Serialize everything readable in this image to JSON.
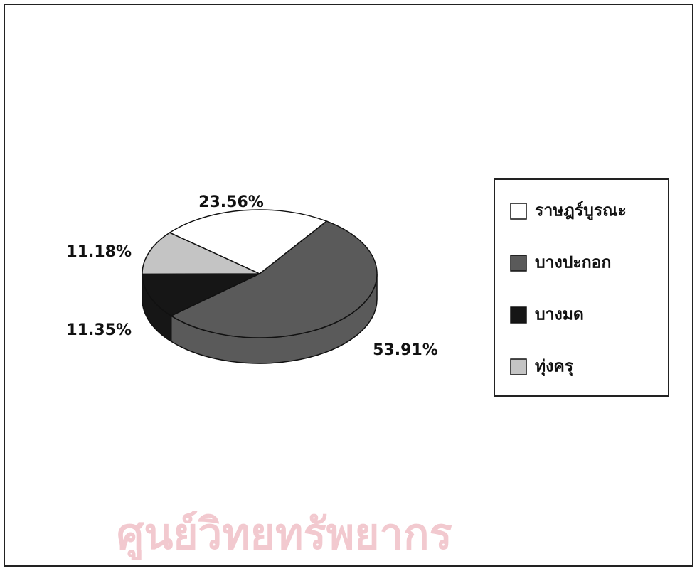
{
  "chart_data": {
    "type": "pie",
    "categories": [
      "ราษฎร์บูรณะ",
      "บางปะกอก",
      "บางมด",
      "ทุ่งครุ"
    ],
    "values": [
      23.56,
      53.91,
      11.35,
      11.18
    ],
    "value_labels": [
      "23.56%",
      "53.91%",
      "11.35%",
      "11.18%"
    ],
    "colors": [
      "#ffffff",
      "#5a5a5a",
      "#161616",
      "#c4c4c4"
    ],
    "legend": "right",
    "watermark": "ศูนย์วิทยทรัพยากร"
  }
}
